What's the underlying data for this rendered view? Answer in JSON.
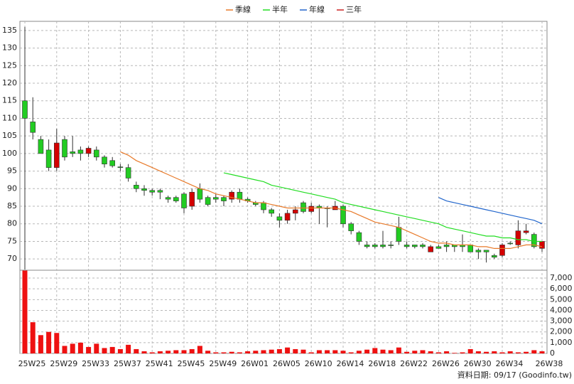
{
  "chart_data": {
    "type": "candlestick",
    "categories": [
      "25W25",
      null,
      null,
      null,
      "25W29",
      null,
      null,
      null,
      "25W33",
      null,
      null,
      null,
      "25W37",
      null,
      null,
      null,
      "25W41",
      null,
      null,
      null,
      "25W45",
      null,
      null,
      null,
      "25W49",
      null,
      null,
      null,
      "26W01",
      null,
      null,
      null,
      "26W05",
      null,
      null,
      null,
      "26W10",
      null,
      null,
      null,
      "26W14",
      null,
      null,
      null,
      "26W18",
      null,
      null,
      null,
      "26W22",
      null,
      null,
      null,
      "26W26",
      null,
      null,
      null,
      "26W30",
      null,
      null,
      null,
      "26W34",
      null,
      null,
      null,
      null,
      "26W38"
    ],
    "open": [
      115,
      109,
      104,
      101,
      96,
      104,
      100.5,
      101,
      100,
      101,
      99,
      98,
      96.2,
      96,
      91,
      90,
      89.5,
      89.5,
      87.5,
      87.5,
      88.5,
      85,
      90,
      87.5,
      87.5,
      87.5,
      87,
      89,
      87,
      86,
      86,
      84,
      82,
      81,
      83,
      86,
      83.5,
      85,
      84.5,
      84,
      85,
      80,
      77.5,
      74,
      74,
      74,
      74,
      79,
      74,
      74,
      74,
      72,
      73.5,
      74,
      74,
      74,
      74,
      72.5,
      72.5,
      71,
      71,
      74.5,
      74,
      77.5,
      77,
      73
    ],
    "high": [
      136,
      116,
      105,
      104,
      107,
      105,
      105,
      102,
      102,
      102,
      99.5,
      99,
      97,
      97,
      92,
      91,
      90,
      90,
      88,
      88,
      89,
      90,
      91.5,
      88,
      88.5,
      88,
      89.5,
      90,
      87.5,
      86.5,
      86.5,
      84.5,
      83,
      84,
      85,
      86.5,
      86,
      85.5,
      85,
      86.5,
      85.5,
      80.5,
      78,
      75,
      74.5,
      78,
      75,
      82,
      75,
      74,
      74.5,
      74,
      74,
      75,
      74,
      77,
      74,
      73,
      72.5,
      71.5,
      74.5,
      75,
      81,
      80,
      77.5,
      75
    ],
    "low": [
      67,
      104,
      100,
      95,
      95,
      98,
      99,
      98,
      99,
      98,
      96,
      96,
      95,
      92,
      89,
      88,
      88,
      87,
      86,
      86,
      83,
      84,
      86,
      85,
      86,
      85,
      86,
      86,
      86,
      85,
      83,
      82,
      79,
      80,
      81,
      83,
      83,
      80,
      79,
      84,
      79,
      77,
      74,
      73,
      73,
      73,
      73,
      74,
      73,
      73,
      73,
      72,
      73,
      72,
      72,
      72,
      72,
      70,
      69,
      70,
      70.5,
      74,
      73,
      77,
      73,
      72
    ],
    "close": [
      110,
      106,
      100,
      96,
      103,
      99,
      100,
      100,
      101.5,
      99,
      97,
      96.5,
      96,
      93,
      90,
      89.5,
      89,
      89,
      87,
      86.5,
      84.5,
      89,
      87,
      85.5,
      87,
      86.5,
      89,
      87,
      86.5,
      85.5,
      84,
      83,
      81,
      83,
      84,
      83.5,
      85,
      84.5,
      84.5,
      85,
      80,
      78,
      75,
      73.5,
      73.5,
      73.5,
      74,
      75,
      73.5,
      73.5,
      73.5,
      73.5,
      73,
      73.5,
      73.5,
      73.5,
      72,
      72,
      72,
      70.5,
      74,
      74.5,
      78,
      78,
      73.5,
      75
    ],
    "up_color": "#d40000",
    "down_color": "#22cc22",
    "series": [
      {
        "name": "季線",
        "color": "#e87a2a",
        "values": [
          null,
          null,
          null,
          null,
          null,
          null,
          null,
          null,
          null,
          null,
          null,
          null,
          100.5,
          99.5,
          98,
          97,
          96,
          95,
          94,
          93,
          92,
          91,
          90,
          89.5,
          88.5,
          88,
          87.5,
          87,
          86.5,
          86,
          86,
          85.5,
          85,
          84.5,
          84.5,
          84.5,
          84.5,
          84.5,
          84.5,
          84.5,
          84,
          83.5,
          82.5,
          81.5,
          80.5,
          80,
          79.5,
          79,
          78,
          77,
          76,
          75,
          74.5,
          74.5,
          74,
          74,
          74,
          73.5,
          73.5,
          73,
          73,
          73,
          73.5,
          74,
          74,
          73.5
        ]
      },
      {
        "name": "半年",
        "color": "#22dd22",
        "values": [
          null,
          null,
          null,
          null,
          null,
          null,
          null,
          null,
          null,
          null,
          null,
          null,
          null,
          null,
          null,
          null,
          null,
          null,
          null,
          null,
          null,
          null,
          null,
          null,
          null,
          94.5,
          94,
          93.5,
          93,
          92.5,
          92,
          91,
          90.5,
          90,
          89.5,
          89,
          88.5,
          88,
          87.5,
          87,
          86,
          85.5,
          85,
          84.5,
          84,
          83.5,
          83,
          82.5,
          82,
          81.5,
          81,
          80.5,
          80,
          79,
          78.5,
          78,
          77.5,
          77,
          76.5,
          76.5,
          76,
          76,
          75.5,
          75.5,
          75,
          75
        ]
      },
      {
        "name": "年線",
        "color": "#2266cc",
        "values": [
          null,
          null,
          null,
          null,
          null,
          null,
          null,
          null,
          null,
          null,
          null,
          null,
          null,
          null,
          null,
          null,
          null,
          null,
          null,
          null,
          null,
          null,
          null,
          null,
          null,
          null,
          null,
          null,
          null,
          null,
          null,
          null,
          null,
          null,
          null,
          null,
          null,
          null,
          null,
          null,
          null,
          null,
          null,
          null,
          null,
          null,
          null,
          null,
          null,
          null,
          null,
          null,
          87.5,
          86.5,
          86,
          85.5,
          85,
          84.5,
          84,
          83.5,
          83,
          82.5,
          82,
          81.5,
          81,
          80
        ]
      },
      {
        "name": "三年",
        "color": "#cc2222",
        "values": [
          null,
          null,
          null,
          null,
          null,
          null,
          null,
          null,
          null,
          null,
          null,
          null,
          null,
          null,
          null,
          null,
          null,
          null,
          null,
          null,
          null,
          null,
          null,
          null,
          null,
          null,
          null,
          null,
          null,
          null,
          null,
          null,
          null,
          null,
          null,
          null,
          null,
          null,
          null,
          null,
          null,
          null,
          null,
          null,
          null,
          null,
          null,
          null,
          null,
          null,
          null,
          null,
          null,
          null,
          null,
          null,
          null,
          null,
          null,
          null,
          null,
          null,
          null,
          null,
          null,
          null
        ]
      }
    ],
    "ylim": [
      66.8,
      137.6
    ],
    "yticks": [
      70,
      75,
      80,
      85,
      90,
      95,
      100,
      105,
      110,
      115,
      120,
      125,
      130,
      135
    ],
    "volume": [
      7700,
      2900,
      1700,
      2000,
      1900,
      700,
      900,
      1000,
      600,
      900,
      500,
      600,
      400,
      800,
      400,
      200,
      100,
      200,
      250,
      300,
      300,
      400,
      700,
      250,
      100,
      100,
      150,
      100,
      200,
      250,
      300,
      350,
      400,
      550,
      400,
      350,
      100,
      300,
      300,
      300,
      250,
      100,
      250,
      350,
      500,
      350,
      300,
      550,
      150,
      250,
      300,
      200,
      100,
      200,
      50,
      100,
      400,
      200,
      150,
      200,
      100,
      200,
      100,
      150,
      300,
      200
    ],
    "volume_color": "#ee1111",
    "y2lim": [
      0,
      7730
    ],
    "y2ticks": [
      0,
      {
        "value": 1000,
        "label": "1,000"
      },
      {
        "value": 2000,
        "label": "2,000"
      },
      {
        "value": 3000,
        "label": "3,000"
      },
      {
        "value": 4000,
        "label": "4,000"
      },
      {
        "value": 5000,
        "label": "5,000"
      },
      {
        "value": 6000,
        "label": "6,000"
      },
      {
        "value": 7000,
        "label": "7,000"
      }
    ],
    "grid": true,
    "footnote": "資料日期: 09/17  (Goodinfo.tw)"
  }
}
